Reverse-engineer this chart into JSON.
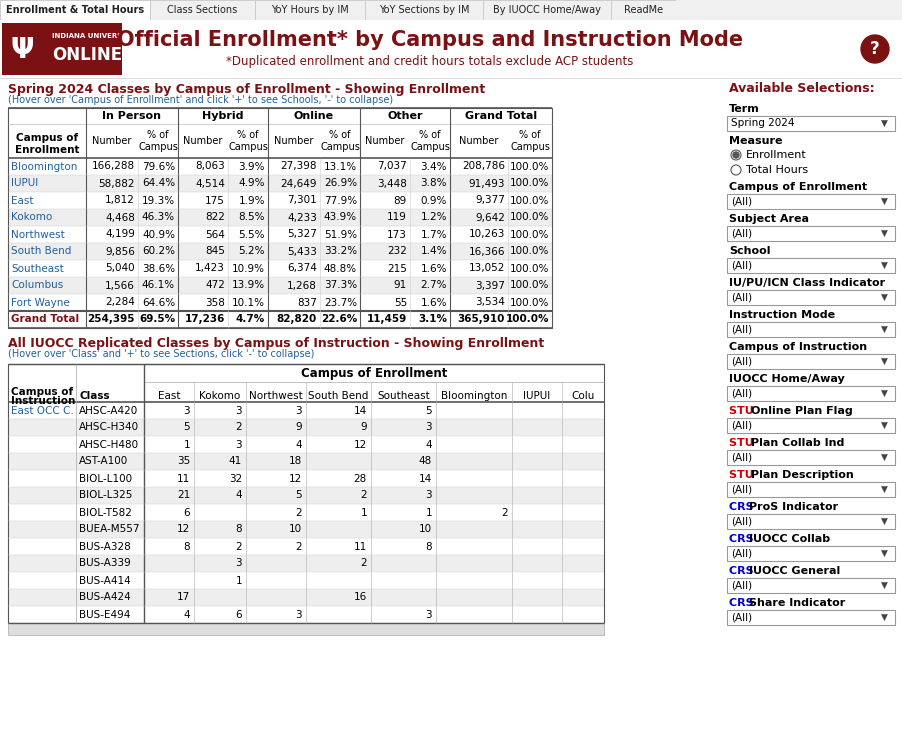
{
  "tab_labels": [
    "Enrollment & Total Hours",
    "Class Sections",
    "YoY Hours by IM",
    "YoY Sections by IM",
    "By IUOCC Home/Away",
    "ReadMe"
  ],
  "active_tab": 0,
  "header_title": "Official Enrollment* by Campus and Instruction Mode",
  "header_subtitle": "*Duplicated enrollment and credit hours totals exclude ACP students",
  "section1_title": "Spring 2024 Classes by Campus of Enrollment - Showing Enrollment",
  "section1_subtitle": "(Hover over 'Campus of Enrollment' and click '+' to see Schools, '-' to collapse)",
  "table1_rows": [
    [
      "Bloomington",
      "166,288",
      "79.6%",
      "8,063",
      "3.9%",
      "27,398",
      "13.1%",
      "7,037",
      "3.4%",
      "208,786",
      "100.0%"
    ],
    [
      "IUPUI",
      "58,882",
      "64.4%",
      "4,514",
      "4.9%",
      "24,649",
      "26.9%",
      "3,448",
      "3.8%",
      "91,493",
      "100.0%"
    ],
    [
      "East",
      "1,812",
      "19.3%",
      "175",
      "1.9%",
      "7,301",
      "77.9%",
      "89",
      "0.9%",
      "9,377",
      "100.0%"
    ],
    [
      "Kokomo",
      "4,468",
      "46.3%",
      "822",
      "8.5%",
      "4,233",
      "43.9%",
      "119",
      "1.2%",
      "9,642",
      "100.0%"
    ],
    [
      "Northwest",
      "4,199",
      "40.9%",
      "564",
      "5.5%",
      "5,327",
      "51.9%",
      "173",
      "1.7%",
      "10,263",
      "100.0%"
    ],
    [
      "South Bend",
      "9,856",
      "60.2%",
      "845",
      "5.2%",
      "5,433",
      "33.2%",
      "232",
      "1.4%",
      "16,366",
      "100.0%"
    ],
    [
      "Southeast",
      "5,040",
      "38.6%",
      "1,423",
      "10.9%",
      "6,374",
      "48.8%",
      "215",
      "1.6%",
      "13,052",
      "100.0%"
    ],
    [
      "Columbus",
      "1,566",
      "46.1%",
      "472",
      "13.9%",
      "1,268",
      "37.3%",
      "91",
      "2.7%",
      "3,397",
      "100.0%"
    ],
    [
      "Fort Wayne",
      "2,284",
      "64.6%",
      "358",
      "10.1%",
      "837",
      "23.7%",
      "55",
      "1.6%",
      "3,534",
      "100.0%"
    ]
  ],
  "table1_footer": [
    "Grand Total",
    "254,395",
    "69.5%",
    "17,236",
    "4.7%",
    "82,820",
    "22.6%",
    "11,459",
    "3.1%",
    "365,910",
    "100.0%"
  ],
  "section2_title": "All IUOCC Replicated Classes by Campus of Instruction - Showing Enrollment",
  "section2_subtitle": "(Hover over 'Class' and '+' to see Sections, click '-' to collapse)",
  "table2_col_subheaders": [
    "East",
    "Kokomo",
    "Northwest",
    "South Bend",
    "Southeast",
    "Bloomington",
    "IUPUI",
    "Colu"
  ],
  "table2_rows": [
    [
      "East OCC C.",
      "AHSC-A420",
      "3",
      "3",
      "3",
      "14",
      "5",
      "",
      "",
      ""
    ],
    [
      "",
      "AHSC-H340",
      "5",
      "2",
      "9",
      "9",
      "3",
      "",
      "",
      ""
    ],
    [
      "",
      "AHSC-H480",
      "1",
      "3",
      "4",
      "12",
      "4",
      "",
      "",
      ""
    ],
    [
      "",
      "AST-A100",
      "35",
      "41",
      "18",
      "",
      "48",
      "",
      "",
      ""
    ],
    [
      "",
      "BIOL-L100",
      "11",
      "32",
      "12",
      "28",
      "14",
      "",
      "",
      ""
    ],
    [
      "",
      "BIOL-L325",
      "21",
      "4",
      "5",
      "2",
      "3",
      "",
      "",
      ""
    ],
    [
      "",
      "BIOL-T582",
      "6",
      "",
      "2",
      "1",
      "1",
      "2",
      "",
      ""
    ],
    [
      "",
      "BUEA-M557",
      "12",
      "8",
      "10",
      "",
      "10",
      "",
      "",
      ""
    ],
    [
      "",
      "BUS-A328",
      "8",
      "2",
      "2",
      "11",
      "8",
      "",
      "",
      ""
    ],
    [
      "",
      "BUS-A339",
      "",
      "3",
      "",
      "2",
      "",
      "",
      "",
      ""
    ],
    [
      "",
      "BUS-A414",
      "",
      "1",
      "",
      "",
      "",
      "",
      "",
      ""
    ],
    [
      "",
      "BUS-A424",
      "17",
      "",
      "",
      "16",
      "",
      "",
      "",
      ""
    ],
    [
      "",
      "BUS-E494",
      "4",
      "6",
      "3",
      "",
      "3",
      "",
      "",
      ""
    ]
  ],
  "sidebar_items": [
    {
      "label": "Term",
      "value": "Spring 2024",
      "prefix": ""
    },
    {
      "label": "Measure",
      "options": [
        "Enrollment",
        "Total Hours"
      ],
      "prefix": ""
    },
    {
      "label": "Campus of Enrollment",
      "value": "(All)",
      "prefix": ""
    },
    {
      "label": "Subject Area",
      "value": "(All)",
      "prefix": ""
    },
    {
      "label": "School",
      "value": "(All)",
      "prefix": ""
    },
    {
      "label": "IU/PU/ICN Class Indicator",
      "value": "(All)",
      "prefix": ""
    },
    {
      "label": "Instruction Mode",
      "value": "(All)",
      "prefix": ""
    },
    {
      "label": "Campus of Instruction",
      "value": "(All)",
      "prefix": ""
    },
    {
      "label": "IUOCC Home/Away",
      "value": "(All)",
      "prefix": ""
    },
    {
      "label": "Online Plan Flag",
      "value": "(All)",
      "prefix": "STU"
    },
    {
      "label": "Plan Collab Ind",
      "value": "(All)",
      "prefix": "STU"
    },
    {
      "label": "Plan Description",
      "value": "(All)",
      "prefix": "STU"
    },
    {
      "label": "ProS Indicator",
      "value": "(All)",
      "prefix": "CRS"
    },
    {
      "label": "IUOCC Collab",
      "value": "(All)",
      "prefix": "CRS"
    },
    {
      "label": "IUOCC General",
      "value": "(All)",
      "prefix": "CRS"
    },
    {
      "label": "Share Indicator",
      "value": "(All)",
      "prefix": "CRS"
    }
  ],
  "bg_color": "#ffffff",
  "tab_bg": "#f0f0f0",
  "tab_active_bg": "#ffffff",
  "tab_border_color": "#cccccc",
  "logo_bg": "#7b1113",
  "title_color": "#7b1113",
  "link_color": "#2060a0",
  "table_border_dark": "#555555",
  "table_border_light": "#bbbbbb",
  "row_alt_color": "#eeeeee",
  "grand_total_color": "#7b1113",
  "sidebar_title_color": "#7b1113",
  "help_btn_bg": "#7b1113",
  "stu_color": "#cc0000",
  "crs_color": "#0000cc"
}
